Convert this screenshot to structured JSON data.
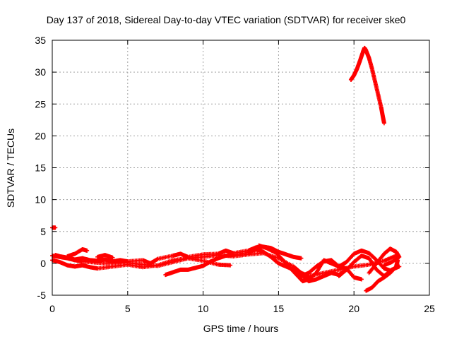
{
  "chart_data": {
    "type": "scatter",
    "title": "Day 137 of 2018, Sidereal Day-to-day VTEC variation (SDTVAR) for receiver ske0",
    "xlabel": "GPS time / hours",
    "ylabel": "SDTVAR / TECUs",
    "xlim": [
      0,
      25
    ],
    "ylim": [
      -5,
      35
    ],
    "xticks": [
      0,
      5,
      10,
      15,
      20,
      25
    ],
    "yticks": [
      -5,
      0,
      5,
      10,
      15,
      20,
      25,
      30,
      35
    ],
    "grid": true,
    "series": [
      {
        "name": "SDTVAR",
        "color": "#ff0000",
        "marker": "plus",
        "tracks": [
          [
            [
              0.0,
              5.6
            ],
            [
              0.2,
              5.6
            ]
          ],
          [
            [
              0.0,
              1.2
            ],
            [
              0.5,
              1.0
            ],
            [
              1.0,
              0.8
            ],
            [
              1.5,
              0.5
            ],
            [
              2.0,
              0.3
            ],
            [
              3.0,
              0.1
            ],
            [
              4.0,
              0.0
            ],
            [
              5.0,
              0.1
            ],
            [
              6.0,
              -0.2
            ],
            [
              7.0,
              -0.4
            ],
            [
              8.0,
              0.2
            ],
            [
              9.0,
              0.8
            ],
            [
              10.0,
              1.0
            ],
            [
              11.0,
              1.3
            ],
            [
              12.0,
              1.1
            ],
            [
              13.0,
              1.4
            ],
            [
              14.0,
              1.6
            ],
            [
              15.0,
              0.8
            ],
            [
              16.0,
              -0.5
            ],
            [
              16.5,
              -1.5
            ],
            [
              17.0,
              -2.0
            ],
            [
              18.0,
              -1.5
            ],
            [
              19.0,
              -1.0
            ],
            [
              20.0,
              -0.5
            ],
            [
              21.0,
              -0.2
            ],
            [
              22.0,
              0.4
            ],
            [
              22.8,
              1.2
            ]
          ],
          [
            [
              0.0,
              0.5
            ],
            [
              0.5,
              0.2
            ],
            [
              1.0,
              -0.3
            ],
            [
              1.5,
              -0.5
            ],
            [
              2.0,
              -0.3
            ],
            [
              2.5,
              -0.6
            ],
            [
              3.0,
              -0.8
            ],
            [
              4.0,
              -0.5
            ],
            [
              5.0,
              -0.2
            ],
            [
              6.0,
              -0.6
            ],
            [
              7.0,
              -0.3
            ],
            [
              8.0,
              0.5
            ],
            [
              9.0,
              0.8
            ],
            [
              10.0,
              0.4
            ],
            [
              11.0,
              -0.2
            ],
            [
              11.8,
              -0.3
            ]
          ],
          [
            [
              1.0,
              1.1
            ],
            [
              1.5,
              1.5
            ],
            [
              2.0,
              2.2
            ],
            [
              2.3,
              2.0
            ]
          ],
          [
            [
              3.0,
              1.0
            ],
            [
              3.5,
              1.3
            ],
            [
              4.0,
              0.9
            ]
          ],
          [
            [
              0.2,
              1.3
            ],
            [
              0.5,
              1.1
            ],
            [
              1.0,
              0.9
            ],
            [
              1.5,
              0.6
            ],
            [
              2.0,
              0.8
            ],
            [
              2.5,
              0.5
            ],
            [
              3.0,
              0.4
            ],
            [
              3.5,
              0.6
            ],
            [
              4.0,
              0.3
            ],
            [
              4.5,
              0.5
            ],
            [
              5.0,
              0.3
            ],
            [
              6.0,
              0.5
            ],
            [
              6.5,
              0.0
            ],
            [
              7.0,
              0.7
            ],
            [
              8.0,
              1.2
            ],
            [
              8.5,
              1.5
            ],
            [
              9.0,
              1.0
            ],
            [
              10.0,
              1.4
            ],
            [
              11.0,
              1.5
            ],
            [
              11.5,
              2.0
            ],
            [
              12.0,
              1.6
            ],
            [
              13.0,
              2.0
            ],
            [
              13.5,
              2.5
            ],
            [
              14.0,
              2.6
            ],
            [
              14.5,
              2.4
            ],
            [
              15.0,
              1.8
            ],
            [
              15.5,
              1.4
            ],
            [
              16.0,
              1.0
            ],
            [
              16.5,
              0.8
            ]
          ],
          [
            [
              7.5,
              -1.8
            ],
            [
              8.0,
              -1.4
            ],
            [
              8.5,
              -1.0
            ],
            [
              9.0,
              -1.0
            ],
            [
              9.5,
              -0.7
            ],
            [
              10.0,
              -0.4
            ],
            [
              10.5,
              0.3
            ],
            [
              11.0,
              0.8
            ],
            [
              11.5,
              1.2
            ],
            [
              12.0,
              1.3
            ],
            [
              13.0,
              1.7
            ],
            [
              13.5,
              2.2
            ],
            [
              14.0,
              1.8
            ],
            [
              14.5,
              1.0
            ],
            [
              15.0,
              0.0
            ],
            [
              15.5,
              -0.5
            ],
            [
              16.0,
              -1.0
            ],
            [
              16.5,
              -1.8
            ],
            [
              17.0,
              -2.8
            ],
            [
              17.5,
              -2.5
            ],
            [
              18.0,
              -2.0
            ],
            [
              18.5,
              -1.5
            ],
            [
              19.0,
              -1.8
            ],
            [
              19.5,
              -1.0
            ]
          ],
          [
            [
              13.7,
              2.8
            ],
            [
              14.2,
              2.4
            ],
            [
              14.8,
              1.7
            ],
            [
              15.3,
              0.5
            ],
            [
              15.8,
              -0.8
            ],
            [
              16.2,
              -1.8
            ],
            [
              16.6,
              -2.8
            ],
            [
              17.0,
              -2.5
            ],
            [
              17.5,
              -1.5
            ],
            [
              18.0,
              0.5
            ],
            [
              18.5,
              0.0
            ],
            [
              19.0,
              -0.5
            ],
            [
              19.5,
              -0.8
            ],
            [
              20.0,
              -2.2
            ],
            [
              20.5,
              -2.5
            ]
          ],
          [
            [
              16.5,
              -2.0
            ],
            [
              17.0,
              -1.5
            ],
            [
              17.5,
              -0.5
            ],
            [
              18.0,
              0.3
            ],
            [
              18.5,
              0.5
            ],
            [
              19.0,
              -0.5
            ],
            [
              19.5,
              0.2
            ],
            [
              20.0,
              1.5
            ],
            [
              20.5,
              2.0
            ],
            [
              21.0,
              1.6
            ],
            [
              21.5,
              0.5
            ],
            [
              22.0,
              -0.8
            ],
            [
              22.5,
              -1.2
            ]
          ],
          [
            [
              20.8,
              -4.3
            ],
            [
              21.2,
              -3.8
            ],
            [
              21.6,
              -2.8
            ],
            [
              22.0,
              -2.2
            ],
            [
              22.4,
              -1.5
            ],
            [
              22.8,
              -0.5
            ],
            [
              22.9,
              0.5
            ]
          ],
          [
            [
              19.0,
              -2.0
            ],
            [
              19.5,
              -1.0
            ],
            [
              20.0,
              0.2
            ],
            [
              20.5,
              1.2
            ],
            [
              21.0,
              0.8
            ],
            [
              21.5,
              -1.0
            ],
            [
              22.0,
              -2.0
            ],
            [
              22.5,
              -1.0
            ],
            [
              23.0,
              -0.5
            ]
          ],
          [
            [
              21.0,
              -1.5
            ],
            [
              21.5,
              0.0
            ],
            [
              22.0,
              1.5
            ],
            [
              22.4,
              2.3
            ],
            [
              22.8,
              1.8
            ],
            [
              23.0,
              1.0
            ],
            [
              22.5,
              0.2
            ],
            [
              22.0,
              -0.3
            ]
          ],
          [
            [
              19.8,
              28.8
            ],
            [
              20.0,
              29.5
            ],
            [
              20.2,
              30.5
            ],
            [
              20.4,
              31.8
            ],
            [
              20.6,
              33.2
            ],
            [
              20.7,
              33.8
            ],
            [
              20.8,
              33.4
            ],
            [
              21.0,
              32.2
            ],
            [
              21.2,
              30.5
            ],
            [
              21.4,
              28.5
            ],
            [
              21.6,
              26.5
            ],
            [
              21.8,
              24.5
            ],
            [
              21.9,
              23.2
            ],
            [
              22.0,
              22.0
            ]
          ]
        ]
      }
    ]
  }
}
